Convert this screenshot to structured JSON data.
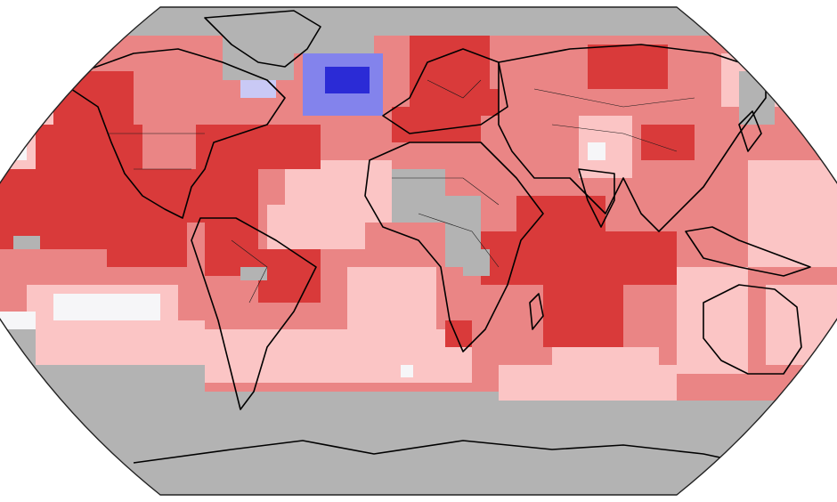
{
  "map": {
    "projection": "robinson",
    "colors": {
      "no_data": "#b3b3b3",
      "warm_strong": "#d93a3a",
      "warm_mid": "#ea8585",
      "warm_light": "#fbc5c5",
      "neutral": "#f6f6f8",
      "cool_light": "#c9c9f5",
      "cool_mid": "#8383ec",
      "cool_strong": "#2b2bd6",
      "coastline": "#000000",
      "border": "#1a1a1a"
    }
  }
}
